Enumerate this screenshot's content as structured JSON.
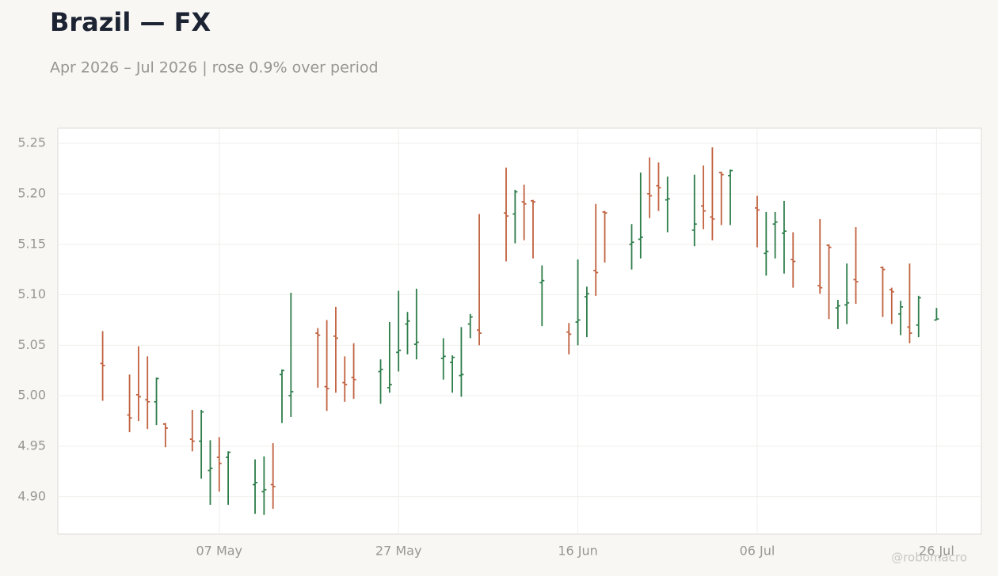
{
  "chart_data": {
    "type": "ohlc",
    "title": "Brazil — FX",
    "subtitle": "Apr 2026 – Jul 2026 | rose 0.9% over period",
    "watermark": "@robomacro",
    "x": [
      "2026-04-24",
      "2026-04-27",
      "2026-04-28",
      "2026-04-29",
      "2026-04-30",
      "2026-05-01",
      "2026-05-04",
      "2026-05-05",
      "2026-05-06",
      "2026-05-07",
      "2026-05-08",
      "2026-05-11",
      "2026-05-12",
      "2026-05-13",
      "2026-05-14",
      "2026-05-15",
      "2026-05-18",
      "2026-05-19",
      "2026-05-20",
      "2026-05-21",
      "2026-05-22",
      "2026-05-25",
      "2026-05-26",
      "2026-05-27",
      "2026-05-28",
      "2026-05-29",
      "2026-06-01",
      "2026-06-02",
      "2026-06-03",
      "2026-06-04",
      "2026-06-05",
      "2026-06-08",
      "2026-06-09",
      "2026-06-10",
      "2026-06-11",
      "2026-06-12",
      "2026-06-15",
      "2026-06-16",
      "2026-06-17",
      "2026-06-18",
      "2026-06-19",
      "2026-06-22",
      "2026-06-23",
      "2026-06-24",
      "2026-06-25",
      "2026-06-26",
      "2026-06-29",
      "2026-06-30",
      "2026-07-01",
      "2026-07-02",
      "2026-07-03",
      "2026-07-06",
      "2026-07-07",
      "2026-07-08",
      "2026-07-09",
      "2026-07-10",
      "2026-07-13",
      "2026-07-14",
      "2026-07-15",
      "2026-07-16",
      "2026-07-17",
      "2026-07-20",
      "2026-07-21",
      "2026-07-22",
      "2026-07-23",
      "2026-07-24",
      "2026-07-26"
    ],
    "open": [
      5.032,
      4.981,
      5.001,
      4.996,
      4.994,
      4.972,
      4.957,
      4.955,
      4.926,
      4.939,
      4.939,
      4.912,
      4.905,
      4.912,
      5.021,
      5.0,
      5.062,
      5.009,
      5.059,
      5.013,
      5.018,
      5.024,
      5.008,
      5.043,
      5.071,
      5.051,
      5.037,
      5.033,
      5.02,
      5.071,
      5.065,
      5.181,
      5.18,
      5.192,
      5.193,
      5.112,
      5.063,
      5.073,
      5.098,
      5.124,
      5.182,
      5.15,
      5.155,
      5.2,
      5.208,
      5.194,
      5.164,
      5.188,
      5.177,
      5.221,
      5.218,
      5.186,
      5.141,
      5.17,
      5.161,
      5.135,
      5.109,
      5.149,
      5.087,
      5.09,
      5.115,
      5.127,
      5.105,
      5.081,
      5.068,
      5.07,
      5.075
    ],
    "high": [
      5.064,
      5.021,
      5.049,
      5.039,
      5.018,
      4.973,
      4.986,
      4.986,
      4.956,
      4.959,
      4.945,
      4.937,
      4.94,
      4.953,
      5.026,
      5.102,
      5.067,
      5.075,
      5.088,
      5.039,
      5.052,
      5.036,
      5.073,
      5.104,
      5.083,
      5.106,
      5.057,
      5.04,
      5.068,
      5.081,
      5.18,
      5.226,
      5.204,
      5.209,
      5.194,
      5.129,
      5.072,
      5.135,
      5.108,
      5.19,
      5.183,
      5.17,
      5.221,
      5.236,
      5.231,
      5.217,
      5.219,
      5.228,
      5.246,
      5.222,
      5.224,
      5.198,
      5.182,
      5.182,
      5.193,
      5.162,
      5.175,
      5.15,
      5.095,
      5.131,
      5.167,
      5.128,
      5.107,
      5.094,
      5.131,
      5.099,
      5.087
    ],
    "low": [
      4.995,
      4.964,
      4.975,
      4.967,
      4.971,
      4.949,
      4.945,
      4.918,
      4.892,
      4.905,
      4.892,
      4.883,
      4.882,
      4.888,
      4.973,
      4.979,
      5.008,
      4.985,
      5.003,
      4.994,
      4.997,
      4.992,
      5.003,
      5.024,
      5.041,
      5.036,
      5.016,
      5.003,
      4.999,
      5.057,
      5.05,
      5.133,
      5.151,
      5.154,
      5.136,
      5.069,
      5.041,
      5.05,
      5.058,
      5.099,
      5.132,
      5.125,
      5.136,
      5.176,
      5.183,
      5.162,
      5.148,
      5.165,
      5.154,
      5.169,
      5.169,
      5.147,
      5.119,
      5.136,
      5.121,
      5.107,
      5.101,
      5.076,
      5.066,
      5.071,
      5.091,
      5.078,
      5.071,
      5.06,
      5.052,
      5.058,
      5.075
    ],
    "close": [
      5.03,
      4.978,
      4.999,
      4.994,
      5.017,
      4.968,
      4.955,
      4.984,
      4.928,
      4.933,
      4.944,
      4.914,
      4.907,
      4.91,
      5.025,
      5.004,
      5.06,
      5.007,
      5.057,
      5.011,
      5.016,
      5.026,
      5.011,
      5.045,
      5.074,
      5.053,
      5.039,
      5.038,
      5.021,
      5.078,
      5.062,
      5.178,
      5.202,
      5.19,
      5.192,
      5.114,
      5.061,
      5.075,
      5.101,
      5.122,
      5.181,
      5.152,
      5.157,
      5.198,
      5.206,
      5.195,
      5.17,
      5.183,
      5.175,
      5.219,
      5.223,
      5.184,
      5.143,
      5.172,
      5.163,
      5.133,
      5.107,
      5.147,
      5.089,
      5.092,
      5.113,
      5.125,
      5.103,
      5.088,
      5.062,
      5.097,
      5.076
    ],
    "up_color": "#2e7d4a",
    "down_color": "#c0613f",
    "xlim": [
      "2026-04-19",
      "2026-07-31"
    ],
    "xticks": [
      {
        "value": "2026-05-07",
        "label": "07 May"
      },
      {
        "value": "2026-05-27",
        "label": "27 May"
      },
      {
        "value": "2026-06-16",
        "label": "16 Jun"
      },
      {
        "value": "2026-07-06",
        "label": "06 Jul"
      },
      {
        "value": "2026-07-26",
        "label": "26 Jul"
      }
    ],
    "ylim": [
      4.863,
      5.265
    ],
    "yticks": [
      {
        "value": 4.9,
        "label": "4.90"
      },
      4.95,
      {
        "value": 5.0,
        "label": "5.00"
      },
      5.05,
      {
        "value": 5.1,
        "label": "5.10"
      },
      5.15,
      {
        "value": 5.2,
        "label": "5.20"
      },
      5.25
    ],
    "grid": true
  }
}
